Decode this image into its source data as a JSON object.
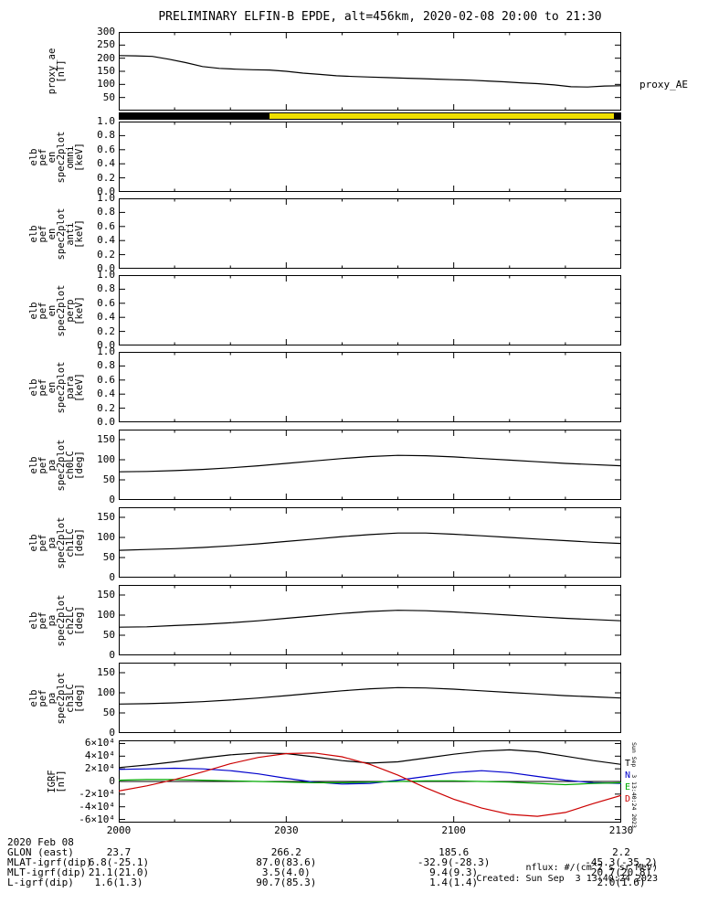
{
  "title": "PRELIMINARY ELFIN-B EPDE, alt=456km, 2020-02-08 20:00 to 21:30",
  "proxy_right_label": "proxy_AE",
  "side_timestamp": "Sun Sep  3 13:40:24 2023",
  "date_label": "2020 Feb 08",
  "footer": {
    "nflux_units": "nflux: #/(cm^2 s sr MeV)",
    "created": "Created: Sun Sep  3 13:40:24 2023"
  },
  "time_axis": {
    "tick_labels": [
      "2000",
      "2030",
      "2100",
      "2130"
    ],
    "major_minutes": [
      0,
      30,
      60,
      90
    ],
    "minor_minutes": [
      10,
      20,
      40,
      50,
      70,
      80
    ],
    "total_minutes": 90
  },
  "mode_bar": {
    "segments": [
      {
        "color": "#000000",
        "from": 0.0,
        "to": 0.3
      },
      {
        "color": "#efdf00",
        "from": 0.3,
        "to": 0.988
      },
      {
        "color": "#000000",
        "from": 0.988,
        "to": 1.0
      }
    ]
  },
  "bottom_rows": [
    {
      "label": "GLON (east)",
      "values": [
        "23.7",
        "266.2",
        "185.6",
        "2.2"
      ]
    },
    {
      "label": "MLAT-igrf(dip)",
      "values": [
        "6.8(-25.1)",
        "87.0(83.6)",
        "-32.9(-28.3)",
        "-45.3(-35.2)"
      ]
    },
    {
      "label": "MLT-igrf(dip)",
      "values": [
        "21.1(21.0)",
        "3.5(4.0)",
        "9.4(9.3)",
        "20.7(20.8)"
      ]
    },
    {
      "label": "L-igrf(dip)",
      "values": [
        "1.6(1.3)",
        "90.7(85.3)",
        "1.4(1.4)",
        "2.0(1.6)"
      ]
    }
  ],
  "chart_data": [
    {
      "id": "proxy_ae",
      "type": "line",
      "ylabel_lines": [
        "proxy_ae",
        "[nT]"
      ],
      "yrange": [
        0,
        300
      ],
      "yticks": [
        {
          "v": 50,
          "label": "50"
        },
        {
          "v": 100,
          "label": "100"
        },
        {
          "v": 150,
          "label": "150"
        },
        {
          "v": 200,
          "label": "200"
        },
        {
          "v": 250,
          "label": "250"
        },
        {
          "v": 300,
          "label": "300"
        }
      ],
      "x_minutes": [
        0,
        3,
        6,
        9,
        12,
        15,
        18,
        21,
        24,
        27,
        30,
        33,
        36,
        39,
        42,
        45,
        48,
        51,
        54,
        57,
        60,
        63,
        66,
        69,
        72,
        75,
        78,
        81,
        84,
        87,
        90
      ],
      "series": [
        {
          "name": "proxy_AE",
          "color": "#000000",
          "values": [
            210,
            209,
            207,
            196,
            183,
            168,
            161,
            158,
            156,
            155,
            150,
            143,
            138,
            133,
            130,
            128,
            126,
            124,
            122,
            120,
            118,
            116,
            113,
            110,
            106,
            103,
            98,
            91,
            90,
            94,
            95
          ]
        }
      ]
    },
    {
      "id": "en_spec2plot_omni",
      "type": "line",
      "ylabel_lines": [
        "elb",
        "pef",
        "en",
        "spec2plot",
        "omni",
        "[keV]"
      ],
      "yrange": [
        0,
        1
      ],
      "yticks": [
        {
          "v": 0.0,
          "label": "0.0"
        },
        {
          "v": 0.2,
          "label": "0.2"
        },
        {
          "v": 0.4,
          "label": "0.4"
        },
        {
          "v": 0.6,
          "label": "0.6"
        },
        {
          "v": 0.8,
          "label": "0.8"
        },
        {
          "v": 1.0,
          "label": "1.0"
        }
      ],
      "x_minutes": [],
      "series": []
    },
    {
      "id": "en_spec2plot_anti",
      "type": "line",
      "ylabel_lines": [
        "elb",
        "pef",
        "en",
        "spec2plot",
        "anti",
        "[keV]"
      ],
      "yrange": [
        0,
        1
      ],
      "yticks": [
        {
          "v": 0.0,
          "label": "0.0"
        },
        {
          "v": 0.2,
          "label": "0.2"
        },
        {
          "v": 0.4,
          "label": "0.4"
        },
        {
          "v": 0.6,
          "label": "0.6"
        },
        {
          "v": 0.8,
          "label": "0.8"
        },
        {
          "v": 1.0,
          "label": "1.0"
        }
      ],
      "x_minutes": [],
      "series": []
    },
    {
      "id": "en_spec2plot_perp",
      "type": "line",
      "ylabel_lines": [
        "elb",
        "pef",
        "en",
        "spec2plot",
        "perp",
        "[keV]"
      ],
      "yrange": [
        0,
        1
      ],
      "yticks": [
        {
          "v": 0.0,
          "label": "0.0"
        },
        {
          "v": 0.2,
          "label": "0.2"
        },
        {
          "v": 0.4,
          "label": "0.4"
        },
        {
          "v": 0.6,
          "label": "0.6"
        },
        {
          "v": 0.8,
          "label": "0.8"
        },
        {
          "v": 1.0,
          "label": "1.0"
        }
      ],
      "x_minutes": [],
      "series": []
    },
    {
      "id": "en_spec2plot_para",
      "type": "line",
      "ylabel_lines": [
        "elb",
        "pef",
        "en",
        "spec2plot",
        "para",
        "[keV]"
      ],
      "yrange": [
        0,
        1
      ],
      "yticks": [
        {
          "v": 0.0,
          "label": "0.0"
        },
        {
          "v": 0.2,
          "label": "0.2"
        },
        {
          "v": 0.4,
          "label": "0.4"
        },
        {
          "v": 0.6,
          "label": "0.6"
        },
        {
          "v": 0.8,
          "label": "0.8"
        },
        {
          "v": 1.0,
          "label": "1.0"
        }
      ],
      "x_minutes": [],
      "series": []
    },
    {
      "id": "pa_spec2plot_ch0LC",
      "type": "line",
      "ylabel_lines": [
        "elb",
        "pef",
        "pa",
        "spec2plot",
        "ch0LC",
        "[deg]"
      ],
      "yrange": [
        0,
        175
      ],
      "yticks": [
        {
          "v": 0,
          "label": "0"
        },
        {
          "v": 50,
          "label": "50"
        },
        {
          "v": 100,
          "label": "100"
        },
        {
          "v": 150,
          "label": "150"
        }
      ],
      "x_minutes": [
        0,
        5,
        10,
        15,
        20,
        25,
        30,
        35,
        40,
        45,
        50,
        55,
        60,
        65,
        70,
        75,
        80,
        85,
        90
      ],
      "series": [
        {
          "name": "ch0LC",
          "color": "#000000",
          "values": [
            70,
            71,
            73,
            76,
            80,
            85,
            91,
            97,
            103,
            108,
            111,
            110,
            107,
            103,
            99,
            95,
            91,
            88,
            85
          ]
        }
      ]
    },
    {
      "id": "pa_spec2plot_ch1LC",
      "type": "line",
      "ylabel_lines": [
        "elb",
        "pef",
        "pa",
        "spec2plot",
        "ch1LC",
        "[deg]"
      ],
      "yrange": [
        0,
        175
      ],
      "yticks": [
        {
          "v": 0,
          "label": "0"
        },
        {
          "v": 50,
          "label": "50"
        },
        {
          "v": 100,
          "label": "100"
        },
        {
          "v": 150,
          "label": "150"
        }
      ],
      "x_minutes": [
        0,
        5,
        10,
        15,
        20,
        25,
        30,
        35,
        40,
        45,
        50,
        55,
        60,
        65,
        70,
        75,
        80,
        85,
        90
      ],
      "series": [
        {
          "name": "ch1LC",
          "color": "#000000",
          "values": [
            68,
            70,
            72,
            75,
            79,
            84,
            90,
            96,
            102,
            107,
            111,
            111,
            108,
            104,
            100,
            96,
            92,
            88,
            85
          ]
        }
      ]
    },
    {
      "id": "pa_spec2plot_ch2LC",
      "type": "line",
      "ylabel_lines": [
        "elb",
        "pef",
        "pa",
        "spec2plot",
        "ch2LC",
        "[deg]"
      ],
      "yrange": [
        0,
        175
      ],
      "yticks": [
        {
          "v": 0,
          "label": "0"
        },
        {
          "v": 50,
          "label": "50"
        },
        {
          "v": 100,
          "label": "100"
        },
        {
          "v": 150,
          "label": "150"
        }
      ],
      "x_minutes": [
        0,
        5,
        10,
        15,
        20,
        25,
        30,
        35,
        40,
        45,
        50,
        55,
        60,
        65,
        70,
        75,
        80,
        85,
        90
      ],
      "series": [
        {
          "name": "ch2LC",
          "color": "#000000",
          "values": [
            70,
            71,
            74,
            77,
            81,
            86,
            92,
            98,
            104,
            109,
            112,
            111,
            108,
            104,
            100,
            96,
            92,
            89,
            86
          ]
        }
      ]
    },
    {
      "id": "pa_spec2plot_ch3LC",
      "type": "line",
      "ylabel_lines": [
        "elb",
        "pef",
        "pa",
        "spec2plot",
        "ch3LC",
        "[deg]"
      ],
      "yrange": [
        0,
        175
      ],
      "yticks": [
        {
          "v": 0,
          "label": "0"
        },
        {
          "v": 50,
          "label": "50"
        },
        {
          "v": 100,
          "label": "100"
        },
        {
          "v": 150,
          "label": "150"
        }
      ],
      "x_minutes": [
        0,
        5,
        10,
        15,
        20,
        25,
        30,
        35,
        40,
        45,
        50,
        55,
        60,
        65,
        70,
        75,
        80,
        85,
        90
      ],
      "series": [
        {
          "name": "ch3LC",
          "color": "#000000",
          "values": [
            72,
            73,
            75,
            78,
            82,
            87,
            93,
            99,
            105,
            110,
            113,
            112,
            109,
            105,
            101,
            97,
            93,
            90,
            87
          ]
        }
      ]
    },
    {
      "id": "igrf",
      "type": "line",
      "ylabel_lines": [
        "IGRF",
        "[nT]"
      ],
      "yrange": [
        -65000,
        65000
      ],
      "zero_line": true,
      "yticks": [
        {
          "v": -60000,
          "label": "-6×10⁴"
        },
        {
          "v": -40000,
          "label": "-4×10⁴"
        },
        {
          "v": -20000,
          "label": "-2×10⁴"
        },
        {
          "v": 0,
          "label": "0"
        },
        {
          "v": 20000,
          "label": "2×10⁴"
        },
        {
          "v": 40000,
          "label": "4×10⁴"
        },
        {
          "v": 60000,
          "label": "6×10⁴"
        }
      ],
      "x_minutes": [
        0,
        5,
        10,
        15,
        20,
        25,
        30,
        35,
        40,
        45,
        50,
        55,
        60,
        65,
        70,
        75,
        80,
        85,
        90
      ],
      "series": [
        {
          "name": "T",
          "color": "#000000",
          "values": [
            22000,
            26000,
            31000,
            37000,
            42000,
            45000,
            44000,
            39000,
            33000,
            29000,
            31000,
            37000,
            43000,
            48000,
            50000,
            47000,
            40000,
            33000,
            27000
          ]
        },
        {
          "name": "N",
          "color": "#0000cc",
          "values": [
            19000,
            20000,
            21000,
            20000,
            17000,
            12000,
            5000,
            -1000,
            -4000,
            -3000,
            2000,
            8000,
            14000,
            17000,
            14000,
            8000,
            2000,
            -2000,
            -3000
          ]
        },
        {
          "name": "E",
          "color": "#00aa00",
          "values": [
            2000,
            3000,
            3000,
            2000,
            1000,
            0,
            -1000,
            -2000,
            -2000,
            -1000,
            0,
            1000,
            1000,
            0,
            -1000,
            -3000,
            -5000,
            -3000,
            -2000
          ]
        },
        {
          "name": "D",
          "color": "#cc0000",
          "values": [
            -15000,
            -7000,
            3000,
            15000,
            28000,
            38000,
            44000,
            45000,
            39000,
            27000,
            10000,
            -10000,
            -28000,
            -42000,
            -52000,
            -55000,
            -49000,
            -35000,
            -22000
          ]
        }
      ],
      "right_series_labels": [
        {
          "text": "T",
          "color": "#000000"
        },
        {
          "text": "N",
          "color": "#0000cc"
        },
        {
          "text": "E",
          "color": "#00aa00"
        },
        {
          "text": "D",
          "color": "#cc0000"
        }
      ]
    }
  ]
}
